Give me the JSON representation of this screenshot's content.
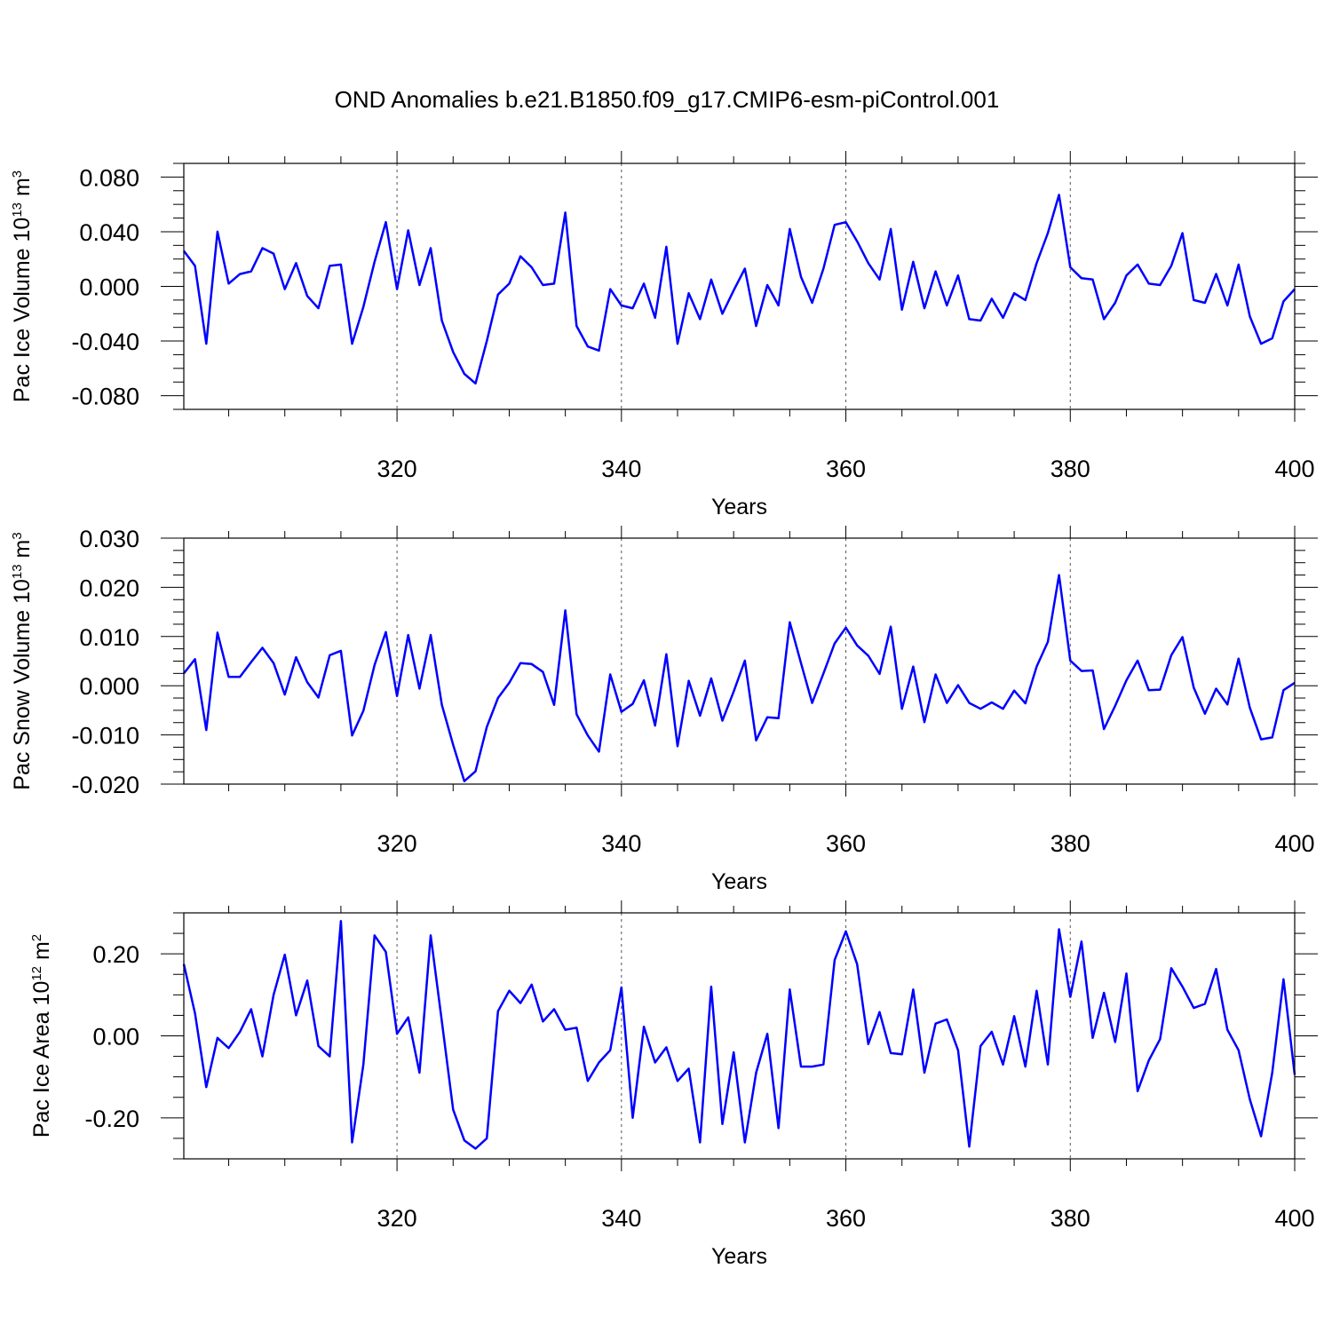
{
  "title": "OND Anomalies b.e21.B1850.f09_g17.CMIP6-esm-piControl.001",
  "line_color": "#0000ff",
  "chart_data": [
    {
      "type": "line",
      "ylabel": {
        "prefix": "Pac Ice Volume 10",
        "exponent": "13",
        "unit": " m",
        "unit_exponent": "3"
      },
      "xlabel": "Years",
      "xlim": [
        301,
        400
      ],
      "ylim": [
        -0.09,
        0.09
      ],
      "xticks": [
        320,
        340,
        360,
        380,
        400
      ],
      "xtick_labels": [
        "320",
        "340",
        "360",
        "380",
        "400"
      ],
      "yticks": [
        -0.08,
        -0.04,
        0.0,
        0.04,
        0.08
      ],
      "ytick_labels": [
        "-0.080",
        "-0.040",
        "0.000",
        "0.040",
        "0.080"
      ],
      "grid": "dashed vertical at major x ticks",
      "x": [
        301,
        302,
        303,
        304,
        305,
        306,
        307,
        308,
        309,
        310,
        311,
        312,
        313,
        314,
        315,
        316,
        317,
        318,
        319,
        320,
        321,
        322,
        323,
        324,
        325,
        326,
        327,
        328,
        329,
        330,
        331,
        332,
        333,
        334,
        335,
        336,
        337,
        338,
        339,
        340,
        341,
        342,
        343,
        344,
        345,
        346,
        347,
        348,
        349,
        350,
        351,
        352,
        353,
        354,
        355,
        356,
        357,
        358,
        359,
        360,
        361,
        362,
        363,
        364,
        365,
        366,
        367,
        368,
        369,
        370,
        371,
        372,
        373,
        374,
        375,
        376,
        377,
        378,
        379,
        380,
        381,
        382,
        383,
        384,
        385,
        386,
        387,
        388,
        389,
        390,
        391,
        392,
        393,
        394,
        395,
        396,
        397,
        398,
        399,
        400
      ],
      "series": [
        {
          "values": [
            0.026,
            0.015,
            -0.042,
            0.04,
            0.002,
            0.009,
            0.011,
            0.028,
            0.024,
            -0.002,
            0.017,
            -0.007,
            -0.016,
            0.015,
            0.016,
            -0.042,
            -0.015,
            0.018,
            0.047,
            -0.002,
            0.041,
            0.001,
            0.028,
            -0.025,
            -0.048,
            -0.064,
            -0.071,
            -0.04,
            -0.006,
            0.002,
            0.022,
            0.014,
            0.001,
            0.002,
            0.054,
            -0.029,
            -0.044,
            -0.047,
            -0.002,
            -0.014,
            -0.016,
            0.002,
            -0.023,
            0.029,
            -0.042,
            -0.005,
            -0.024,
            0.005,
            -0.02,
            -0.003,
            0.013,
            -0.029,
            0.001,
            -0.014,
            0.042,
            0.007,
            -0.012,
            0.013,
            0.045,
            0.047,
            0.033,
            0.017,
            0.005,
            0.042,
            -0.017,
            0.018,
            -0.016,
            0.011,
            -0.014,
            0.008,
            -0.024,
            -0.025,
            -0.009,
            -0.023,
            -0.005,
            -0.01,
            0.017,
            0.039,
            0.067,
            0.014,
            0.006,
            0.005,
            -0.024,
            -0.012,
            0.008,
            0.016,
            0.002,
            0.001,
            0.015,
            0.039,
            -0.01,
            -0.012,
            0.009,
            -0.014,
            0.016,
            -0.022,
            -0.042,
            -0.038,
            -0.011,
            -0.002
          ]
        }
      ]
    },
    {
      "type": "line",
      "ylabel": {
        "prefix": "Pac Snow Volume 10",
        "exponent": "13",
        "unit": " m",
        "unit_exponent": "3"
      },
      "xlabel": "Years",
      "xlim": [
        301,
        400
      ],
      "ylim": [
        -0.02,
        0.03
      ],
      "xticks": [
        320,
        340,
        360,
        380,
        400
      ],
      "xtick_labels": [
        "320",
        "340",
        "360",
        "380",
        "400"
      ],
      "yticks": [
        -0.02,
        -0.01,
        0.0,
        0.01,
        0.02,
        0.03
      ],
      "ytick_labels": [
        "-0.020",
        "-0.010",
        "0.000",
        "0.010",
        "0.020",
        "0.030"
      ],
      "grid": "dashed vertical at major x ticks",
      "x": [
        301,
        302,
        303,
        304,
        305,
        306,
        307,
        308,
        309,
        310,
        311,
        312,
        313,
        314,
        315,
        316,
        317,
        318,
        319,
        320,
        321,
        322,
        323,
        324,
        325,
        326,
        327,
        328,
        329,
        330,
        331,
        332,
        333,
        334,
        335,
        336,
        337,
        338,
        339,
        340,
        341,
        342,
        343,
        344,
        345,
        346,
        347,
        348,
        349,
        350,
        351,
        352,
        353,
        354,
        355,
        356,
        357,
        358,
        359,
        360,
        361,
        362,
        363,
        364,
        365,
        366,
        367,
        368,
        369,
        370,
        371,
        372,
        373,
        374,
        375,
        376,
        377,
        378,
        379,
        380,
        381,
        382,
        383,
        384,
        385,
        386,
        387,
        388,
        389,
        390,
        391,
        392,
        393,
        394,
        395,
        396,
        397,
        398,
        399,
        400
      ],
      "series": [
        {
          "values": [
            0.0025,
            0.0054,
            -0.009,
            0.0108,
            0.0018,
            0.0018,
            0.0048,
            0.0077,
            0.0046,
            -0.0018,
            0.0058,
            0.0007,
            -0.0024,
            0.0062,
            0.0071,
            -0.0101,
            -0.0051,
            0.0042,
            0.0109,
            -0.0021,
            0.0103,
            -0.0006,
            0.0103,
            -0.0039,
            -0.012,
            -0.0194,
            -0.0174,
            -0.0084,
            -0.0025,
            0.0006,
            0.0046,
            0.0044,
            0.0028,
            -0.0039,
            0.0153,
            -0.0058,
            -0.0101,
            -0.0134,
            0.0023,
            -0.0053,
            -0.0037,
            0.0011,
            -0.0081,
            0.0064,
            -0.0123,
            0.001,
            -0.0061,
            0.0015,
            -0.0071,
            -0.0012,
            0.0051,
            -0.0111,
            -0.0064,
            -0.0066,
            0.0129,
            0.0046,
            -0.0035,
            0.0025,
            0.0086,
            0.0118,
            0.0082,
            0.0061,
            0.0024,
            0.012,
            -0.0047,
            0.0039,
            -0.0074,
            0.0023,
            -0.0035,
            0.0001,
            -0.0035,
            -0.0047,
            -0.0034,
            -0.0047,
            -0.001,
            -0.0036,
            0.0039,
            0.0089,
            0.0225,
            0.0051,
            0.003,
            0.0031,
            -0.0088,
            -0.0041,
            0.0011,
            0.0051,
            -0.0009,
            -0.0008,
            0.0062,
            0.0099,
            -0.0004,
            -0.0057,
            -0.0006,
            -0.0038,
            0.0055,
            -0.0045,
            -0.0109,
            -0.0105,
            -0.0009,
            0.0006
          ]
        }
      ]
    },
    {
      "type": "line",
      "ylabel": {
        "prefix": "Pac Ice Area 10",
        "exponent": "12",
        "unit": " m",
        "unit_exponent": "2"
      },
      "xlabel": "Years",
      "xlim": [
        301,
        400
      ],
      "ylim": [
        -0.3,
        0.3
      ],
      "xticks": [
        320,
        340,
        360,
        380,
        400
      ],
      "xtick_labels": [
        "320",
        "340",
        "360",
        "380",
        "400"
      ],
      "yticks": [
        -0.2,
        0.0,
        0.2
      ],
      "ytick_labels": [
        "-0.20",
        "0.00",
        "0.20"
      ],
      "grid": "dashed vertical at major x ticks",
      "x": [
        301,
        302,
        303,
        304,
        305,
        306,
        307,
        308,
        309,
        310,
        311,
        312,
        313,
        314,
        315,
        316,
        317,
        318,
        319,
        320,
        321,
        322,
        323,
        324,
        325,
        326,
        327,
        328,
        329,
        330,
        331,
        332,
        333,
        334,
        335,
        336,
        337,
        338,
        339,
        340,
        341,
        342,
        343,
        344,
        345,
        346,
        347,
        348,
        349,
        350,
        351,
        352,
        353,
        354,
        355,
        356,
        357,
        358,
        359,
        360,
        361,
        362,
        363,
        364,
        365,
        366,
        367,
        368,
        369,
        370,
        371,
        372,
        373,
        374,
        375,
        376,
        377,
        378,
        379,
        380,
        381,
        382,
        383,
        384,
        385,
        386,
        387,
        388,
        389,
        390,
        391,
        392,
        393,
        394,
        395,
        396,
        397,
        398,
        399,
        400
      ],
      "series": [
        {
          "values": [
            0.175,
            0.055,
            -0.125,
            -0.005,
            -0.03,
            0.01,
            0.065,
            -0.05,
            0.1,
            0.198,
            0.05,
            0.135,
            -0.025,
            -0.05,
            0.28,
            -0.26,
            -0.07,
            0.245,
            0.205,
            0.005,
            0.045,
            -0.09,
            0.245,
            0.035,
            -0.18,
            -0.255,
            -0.275,
            -0.25,
            0.06,
            0.11,
            0.08,
            0.125,
            0.035,
            0.065,
            0.015,
            0.02,
            -0.11,
            -0.065,
            -0.035,
            0.118,
            -0.2,
            0.022,
            -0.065,
            -0.028,
            -0.11,
            -0.08,
            -0.26,
            0.12,
            -0.215,
            -0.04,
            -0.26,
            -0.09,
            0.005,
            -0.225,
            0.113,
            -0.075,
            -0.075,
            -0.07,
            0.185,
            0.255,
            0.175,
            -0.02,
            0.058,
            -0.042,
            -0.045,
            0.113,
            -0.09,
            0.03,
            0.04,
            -0.035,
            -0.27,
            -0.025,
            0.01,
            -0.07,
            0.048,
            -0.075,
            0.11,
            -0.07,
            0.26,
            0.095,
            0.23,
            -0.005,
            0.105,
            -0.015,
            0.152,
            -0.135,
            -0.06,
            -0.008,
            0.165,
            0.12,
            0.068,
            0.078,
            0.163,
            0.015,
            -0.035,
            -0.155,
            -0.245,
            -0.09,
            0.138,
            -0.095
          ]
        }
      ]
    }
  ]
}
